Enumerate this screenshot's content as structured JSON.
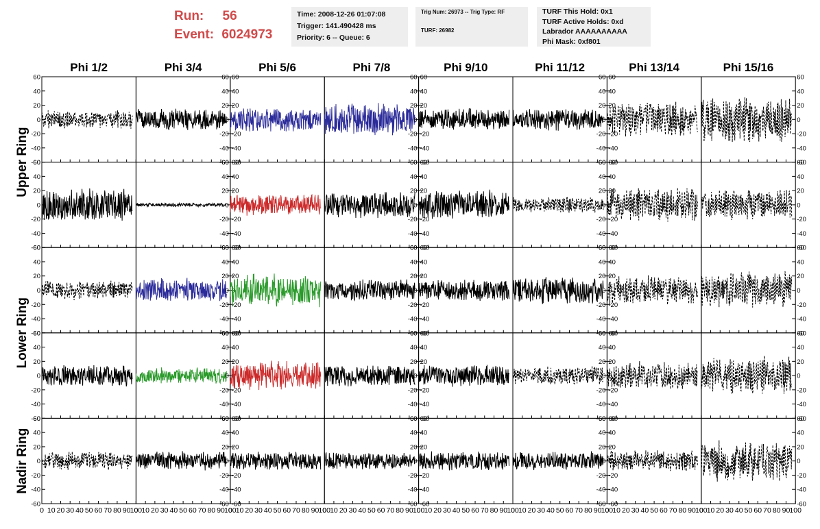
{
  "header": {
    "run_label": "Run:",
    "run_value": "56",
    "event_label": "Event:",
    "event_value": "6024973",
    "info1": [
      "Time: 2008-12-26 01:07:08",
      "Trigger: 141.490428 ms",
      "Priority: 6 -- Queue: 6"
    ],
    "info2": [
      "Trig Num: 26973 -- Trig Type: RF",
      "TURF: 26982"
    ],
    "info3": [
      "TURF This Hold: 0x1",
      "TURF Active Holds: 0xd",
      "Labrador AAAAAAAAAA",
      "Phi Mask: 0xf801"
    ]
  },
  "chart_data": {
    "type": "line",
    "title": "",
    "columns": [
      "Phi 1/2",
      "Phi 3/4",
      "Phi 5/6",
      "Phi 7/8",
      "Phi 9/10",
      "Phi 11/12",
      "Phi 13/14",
      "Phi 15/16"
    ],
    "ring_labels": [
      {
        "label": "Upper Ring",
        "rows": [
          0,
          1
        ]
      },
      {
        "label": "Lower Ring",
        "rows": [
          2,
          3
        ]
      },
      {
        "label": "Nadir Ring",
        "rows": [
          4
        ]
      }
    ],
    "xlim": [
      0,
      100
    ],
    "ylim": [
      -60,
      60
    ],
    "x_ticks": [
      "0",
      "10",
      "20",
      "30",
      "40",
      "50",
      "60",
      "70",
      "80",
      "90",
      "100"
    ],
    "y_ticks": [
      "-60",
      "-40",
      "-20",
      "0",
      "20",
      "40",
      "60"
    ],
    "samples_per_trace": 260,
    "trace_x_range": [
      0,
      96
    ],
    "colors": {
      "black": "#000000",
      "blue": "#2b2b9a",
      "red": "#cc2a2a",
      "green": "#2a9a2a"
    },
    "traces": [
      [
        {
          "style": "dashed",
          "color": "black",
          "amp": 14
        },
        {
          "style": "solid",
          "color": "black",
          "amp": 16
        },
        {
          "style": "solid",
          "color": "blue",
          "amp": 18
        },
        {
          "style": "solid",
          "color": "blue",
          "amp": 24
        },
        {
          "style": "solid",
          "color": "black",
          "amp": 16
        },
        {
          "style": "solid",
          "color": "black",
          "amp": 17
        },
        {
          "style": "dashed",
          "color": "black",
          "amp": 26
        },
        {
          "style": "dashed",
          "color": "black",
          "amp": 34
        }
      ],
      [
        {
          "style": "solid",
          "color": "black",
          "amp": 24
        },
        {
          "style": "solid",
          "color": "black",
          "amp": 3
        },
        {
          "style": "solid",
          "color": "red",
          "amp": 16
        },
        {
          "style": "solid",
          "color": "black",
          "amp": 20
        },
        {
          "style": "solid",
          "color": "black",
          "amp": 22
        },
        {
          "style": "dashed",
          "color": "black",
          "amp": 12
        },
        {
          "style": "dashed",
          "color": "black",
          "amp": 26
        },
        {
          "style": "dashed",
          "color": "black",
          "amp": 24
        }
      ],
      [
        {
          "style": "dashed",
          "color": "black",
          "amp": 14
        },
        {
          "style": "solid",
          "color": "blue",
          "amp": 18
        },
        {
          "style": "solid",
          "color": "green",
          "amp": 24
        },
        {
          "style": "solid",
          "color": "black",
          "amp": 16
        },
        {
          "style": "solid",
          "color": "black",
          "amp": 16
        },
        {
          "style": "solid",
          "color": "black",
          "amp": 20
        },
        {
          "style": "dashed",
          "color": "black",
          "amp": 22
        },
        {
          "style": "dashed",
          "color": "black",
          "amp": 28
        }
      ],
      [
        {
          "style": "solid",
          "color": "black",
          "amp": 16
        },
        {
          "style": "solid",
          "color": "green",
          "amp": 12
        },
        {
          "style": "solid",
          "color": "red",
          "amp": 22
        },
        {
          "style": "solid",
          "color": "black",
          "amp": 16
        },
        {
          "style": "solid",
          "color": "black",
          "amp": 16
        },
        {
          "style": "dashed",
          "color": "black",
          "amp": 14
        },
        {
          "style": "dashed",
          "color": "black",
          "amp": 22
        },
        {
          "style": "dashed",
          "color": "black",
          "amp": 28
        }
      ],
      [
        {
          "style": "dashed",
          "color": "black",
          "amp": 14
        },
        {
          "style": "solid",
          "color": "black",
          "amp": 14
        },
        {
          "style": "solid",
          "color": "black",
          "amp": 14
        },
        {
          "style": "solid",
          "color": "black",
          "amp": 14
        },
        {
          "style": "solid",
          "color": "black",
          "amp": 14
        },
        {
          "style": "solid",
          "color": "black",
          "amp": 14
        },
        {
          "style": "dashed",
          "color": "black",
          "amp": 16
        },
        {
          "style": "dashed",
          "color": "black",
          "amp": 30
        }
      ]
    ]
  }
}
